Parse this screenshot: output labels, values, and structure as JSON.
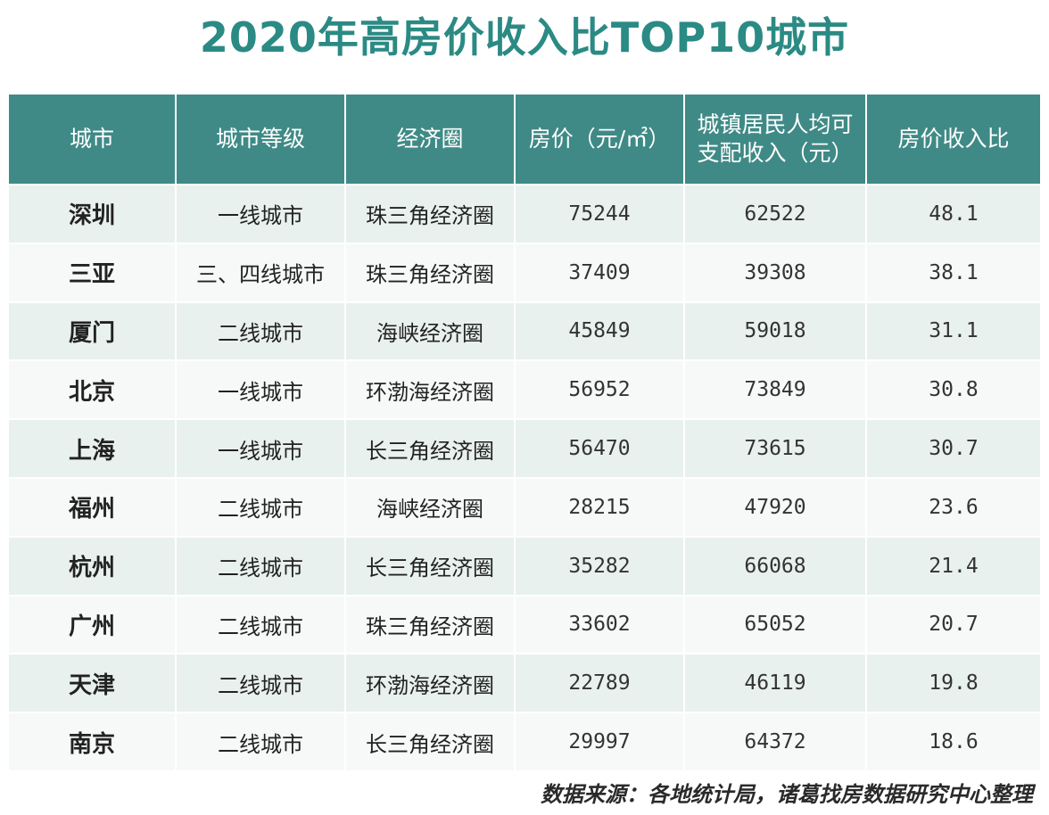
{
  "title": "2020年高房价收入比TOP10城市",
  "table": {
    "headers": [
      "城市",
      "城市等级",
      "经济圈",
      "房价（元/㎡）",
      "城镇居民人均可支配收入（元）",
      "房价收入比"
    ],
    "rows": [
      [
        "深圳",
        "一线城市",
        "珠三角经济圈",
        "75244",
        "62522",
        "48.1"
      ],
      [
        "三亚",
        "三、四线城市",
        "珠三角经济圈",
        "37409",
        "39308",
        "38.1"
      ],
      [
        "厦门",
        "二线城市",
        "海峡经济圈",
        "45849",
        "59018",
        "31.1"
      ],
      [
        "北京",
        "一线城市",
        "环渤海经济圈",
        "56952",
        "73849",
        "30.8"
      ],
      [
        "上海",
        "一线城市",
        "长三角经济圈",
        "56470",
        "73615",
        "30.7"
      ],
      [
        "福州",
        "二线城市",
        "海峡经济圈",
        "28215",
        "47920",
        "23.6"
      ],
      [
        "杭州",
        "二线城市",
        "长三角经济圈",
        "35282",
        "66068",
        "21.4"
      ],
      [
        "广州",
        "二线城市",
        "珠三角经济圈",
        "33602",
        "65052",
        "20.7"
      ],
      [
        "天津",
        "二线城市",
        "环渤海经济圈",
        "22789",
        "46119",
        "19.8"
      ],
      [
        "南京",
        "二线城市",
        "长三角经济圈",
        "29997",
        "64372",
        "18.6"
      ]
    ]
  },
  "footer": "数据来源：各地统计局，诸葛找房数据研究中心整理",
  "colors": {
    "title": "#2b8a84",
    "header_bg": "#3f8a86",
    "row_odd": "#e9f1ef",
    "row_even": "#f7f9f8"
  }
}
